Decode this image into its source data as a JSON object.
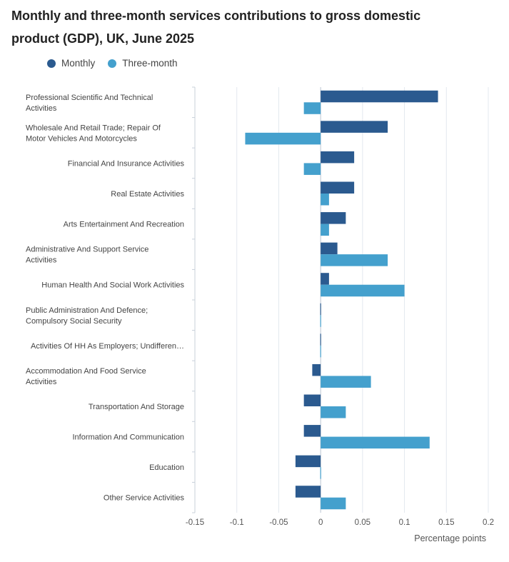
{
  "chart_data": {
    "type": "bar",
    "orientation": "horizontal",
    "title": "Monthly and three-month services contributions to gross domestic product (GDP), UK, June 2025",
    "xlabel": "Percentage points",
    "ylabel": "",
    "xlim": [
      -0.15,
      0.2
    ],
    "xticks": [
      -0.15,
      -0.1,
      -0.05,
      0,
      0.05,
      0.1,
      0.15,
      0.2
    ],
    "xtick_labels": [
      "-0.15",
      "-0.1",
      "-0.05",
      "0",
      "0.05",
      "0.1",
      "0.15",
      "0.2"
    ],
    "legend_position": "top-left",
    "categories": [
      [
        "Professional Scientific And Technical",
        "Activities"
      ],
      [
        "Wholesale And Retail Trade; Repair Of",
        "Motor Vehicles And Motorcycles"
      ],
      [
        "Financial And Insurance Activities"
      ],
      [
        "Real Estate Activities"
      ],
      [
        "Arts Entertainment And Recreation"
      ],
      [
        "Administrative And Support Service",
        "Activities"
      ],
      [
        "Human Health And Social Work Activities"
      ],
      [
        "Public Administration And Defence;",
        "Compulsory Social Security"
      ],
      [
        "Activities Of HH As Employers; Undifferen…"
      ],
      [
        "Accommodation And Food Service",
        "Activities"
      ],
      [
        "Transportation And Storage"
      ],
      [
        "Information And Communication"
      ],
      [
        "Education"
      ],
      [
        "Other Service Activities"
      ]
    ],
    "series": [
      {
        "name": "Monthly",
        "color": "#2b5a8f",
        "values": [
          0.14,
          0.08,
          0.04,
          0.04,
          0.03,
          0.02,
          0.01,
          0,
          0,
          -0.01,
          -0.02,
          -0.02,
          -0.03,
          -0.03
        ]
      },
      {
        "name": "Three-month",
        "color": "#44a0cd",
        "values": [
          -0.02,
          -0.09,
          -0.02,
          0.01,
          0.01,
          0.08,
          0.1,
          0,
          0,
          0.06,
          0.03,
          0.13,
          0,
          0.03
        ]
      }
    ]
  }
}
